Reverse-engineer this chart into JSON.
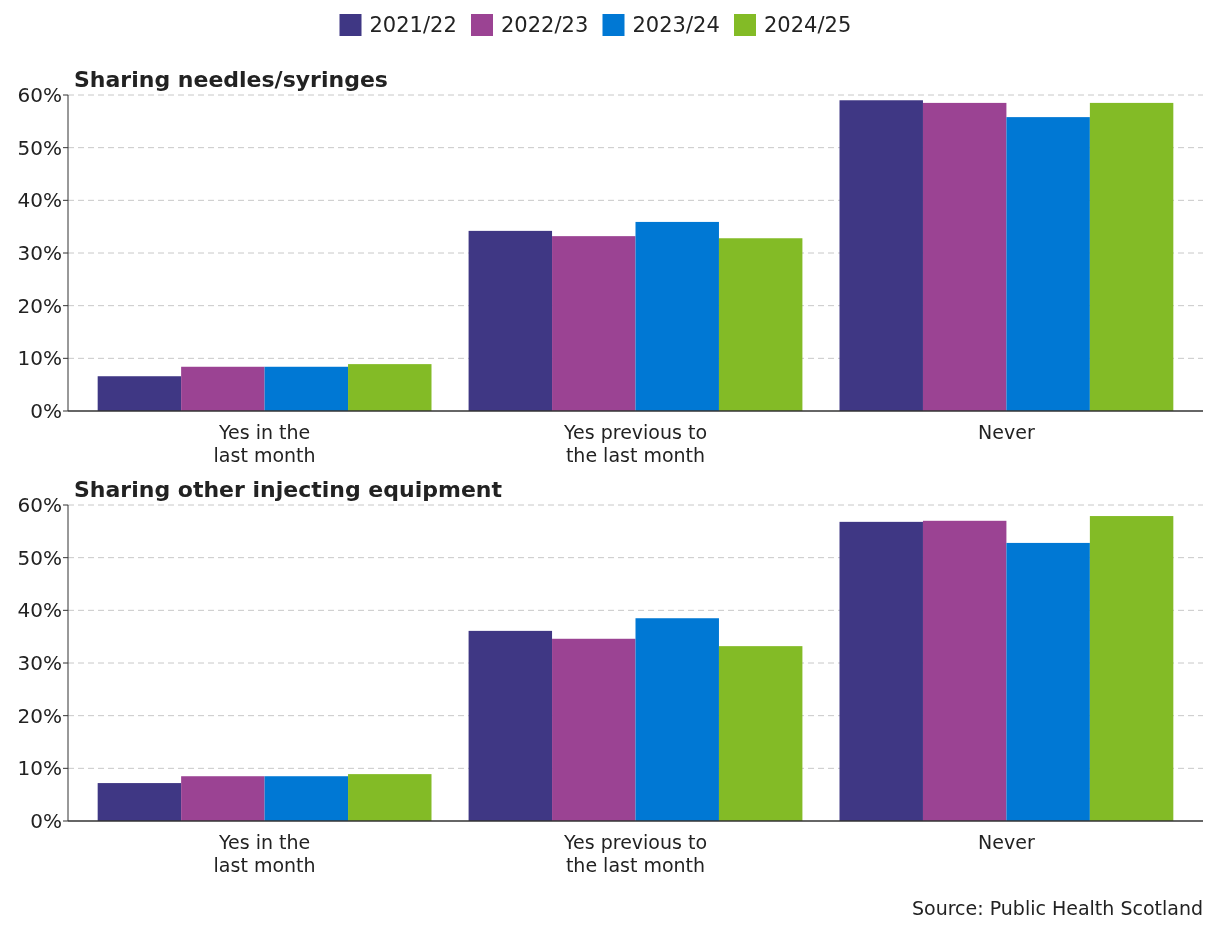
{
  "chart_data": [
    {
      "type": "bar",
      "title": "Sharing needles/syringes",
      "categories": [
        "Yes in the last month",
        "Yes previous to the last month",
        "Never"
      ],
      "series": [
        {
          "name": "2021/22",
          "color": "#3f3784",
          "values": [
            6.6,
            34.2,
            59.0
          ]
        },
        {
          "name": "2022/23",
          "color": "#9b4393",
          "values": [
            8.4,
            33.2,
            58.5
          ]
        },
        {
          "name": "2023/24",
          "color": "#0078d4",
          "values": [
            8.4,
            35.9,
            55.8
          ]
        },
        {
          "name": "2024/25",
          "color": "#83bb26",
          "values": [
            8.9,
            32.8,
            58.5
          ]
        }
      ],
      "ylim": [
        0,
        60
      ],
      "yticks": [
        {
          "value": 0,
          "label": "0%"
        },
        {
          "value": 10,
          "label": "10%"
        },
        {
          "value": 20,
          "label": "20%"
        },
        {
          "value": 30,
          "label": "30%"
        },
        {
          "value": 40,
          "label": "40%"
        },
        {
          "value": 50,
          "label": "50%"
        },
        {
          "value": 60,
          "label": "60%"
        }
      ],
      "grid": "y",
      "legend": "top"
    },
    {
      "type": "bar",
      "title": "Sharing other injecting equipment",
      "categories": [
        "Yes in the last month",
        "Yes previous to the last month",
        "Never"
      ],
      "series": [
        {
          "name": "2021/22",
          "color": "#3f3784",
          "values": [
            7.2,
            36.1,
            56.8
          ]
        },
        {
          "name": "2022/23",
          "color": "#9b4393",
          "values": [
            8.5,
            34.6,
            57.0
          ]
        },
        {
          "name": "2023/24",
          "color": "#0078d4",
          "values": [
            8.5,
            38.5,
            52.8
          ]
        },
        {
          "name": "2024/25",
          "color": "#83bb26",
          "values": [
            8.9,
            33.2,
            57.9
          ]
        }
      ],
      "ylim": [
        0,
        60
      ],
      "yticks": [
        {
          "value": 0,
          "label": "0%"
        },
        {
          "value": 10,
          "label": "10%"
        },
        {
          "value": 20,
          "label": "20%"
        },
        {
          "value": 30,
          "label": "30%"
        },
        {
          "value": 40,
          "label": "40%"
        },
        {
          "value": 50,
          "label": "50%"
        },
        {
          "value": 60,
          "label": "60%"
        }
      ],
      "grid": "y",
      "annotations": [
        "Source: Public Health Scotland"
      ]
    }
  ]
}
